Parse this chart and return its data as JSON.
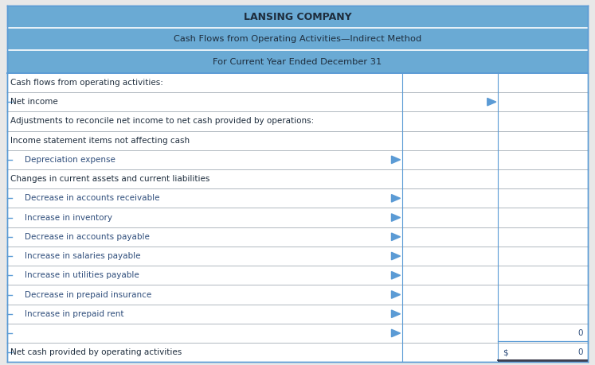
{
  "title1": "LANSING COMPANY",
  "title2": "Cash Flows from Operating Activities—Indirect Method",
  "title3": "For Current Year Ended December 31",
  "header_bg": "#6aaad4",
  "border_color": "#5b9bd5",
  "row_sep_blue": "#5b9bd5",
  "row_sep_gray": "#b0b8c0",
  "text_dark": "#1e2d3d",
  "text_blue": "#2e4d7b",
  "rows": [
    {
      "label": "Cash flows from operating activities:",
      "indent": 0,
      "dollar": "",
      "value": "",
      "type": "normal",
      "bracket_left": false,
      "arrow_col1": false,
      "arrow_col2": false
    },
    {
      "label": "Net income",
      "indent": 0,
      "dollar": "",
      "value": "",
      "type": "normal",
      "bracket_left": true,
      "arrow_col1": false,
      "arrow_col2": true
    },
    {
      "label": "Adjustments to reconcile net income to net cash provided by operations:",
      "indent": 0,
      "dollar": "",
      "value": "",
      "type": "normal",
      "bracket_left": false,
      "arrow_col1": false,
      "arrow_col2": false
    },
    {
      "label": "Income statement items not affecting cash",
      "indent": 0,
      "dollar": "",
      "value": "",
      "type": "normal",
      "bracket_left": false,
      "arrow_col1": false,
      "arrow_col2": false
    },
    {
      "label": "Depreciation expense",
      "indent": 1,
      "dollar": "",
      "value": "",
      "type": "normal",
      "bracket_left": true,
      "arrow_col1": true,
      "arrow_col2": false
    },
    {
      "label": "Changes in current assets and current liabilities",
      "indent": 0,
      "dollar": "",
      "value": "",
      "type": "normal",
      "bracket_left": false,
      "arrow_col1": false,
      "arrow_col2": false
    },
    {
      "label": "Decrease in accounts receivable",
      "indent": 1,
      "dollar": "",
      "value": "",
      "type": "normal",
      "bracket_left": true,
      "arrow_col1": true,
      "arrow_col2": false
    },
    {
      "label": "Increase in inventory",
      "indent": 1,
      "dollar": "",
      "value": "",
      "type": "normal",
      "bracket_left": true,
      "arrow_col1": true,
      "arrow_col2": false
    },
    {
      "label": "Decrease in accounts payable",
      "indent": 1,
      "dollar": "",
      "value": "",
      "type": "normal",
      "bracket_left": true,
      "arrow_col1": true,
      "arrow_col2": false
    },
    {
      "label": "Increase in salaries payable",
      "indent": 1,
      "dollar": "",
      "value": "",
      "type": "normal",
      "bracket_left": true,
      "arrow_col1": true,
      "arrow_col2": false
    },
    {
      "label": "Increase in utilities payable",
      "indent": 1,
      "dollar": "",
      "value": "",
      "type": "normal",
      "bracket_left": true,
      "arrow_col1": true,
      "arrow_col2": false
    },
    {
      "label": "Decrease in prepaid insurance",
      "indent": 1,
      "dollar": "",
      "value": "",
      "type": "normal",
      "bracket_left": true,
      "arrow_col1": true,
      "arrow_col2": false
    },
    {
      "label": "Increase in prepaid rent",
      "indent": 1,
      "dollar": "",
      "value": "",
      "type": "normal",
      "bracket_left": true,
      "arrow_col1": true,
      "arrow_col2": false
    },
    {
      "label": "",
      "indent": 0,
      "dollar": "",
      "value": "0",
      "type": "subtotal",
      "bracket_left": true,
      "arrow_col1": true,
      "arrow_col2": false
    },
    {
      "label": "Net cash provided by operating activities",
      "indent": 0,
      "dollar": "$",
      "value": "0",
      "type": "total",
      "bracket_left": true,
      "arrow_col1": false,
      "arrow_col2": false
    }
  ],
  "figsize": [
    7.47,
    4.59
  ],
  "dpi": 100
}
